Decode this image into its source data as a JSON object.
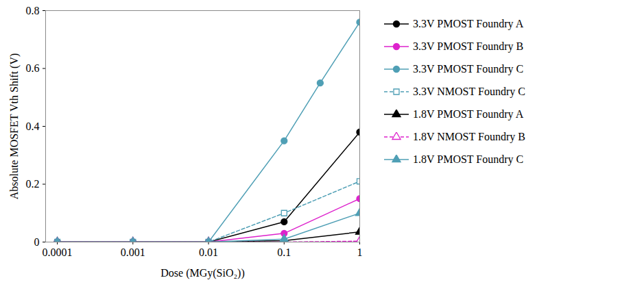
{
  "chart_data": {
    "type": "line",
    "x_label": "Dose (MGy(SiO₂))",
    "y_label": "Absolute MOSFET Vth Shift (V)",
    "log": "x",
    "xlim": [
      7e-05,
      1
    ],
    "xticks": [
      0.0001,
      0.001,
      0.01,
      0.1,
      1
    ],
    "ylim": [
      0,
      0.8
    ],
    "yticks": [
      0,
      0.2,
      0.4,
      0.6,
      0.8
    ],
    "grid": false,
    "legend": "right",
    "series": [
      {
        "name": "3.3V PMOST Foundry A",
        "color": "#000000",
        "marker": "circle",
        "line_style": "solid",
        "x": [
          0.0001,
          0.001,
          0.01,
          0.1,
          1
        ],
        "values": [
          0,
          0,
          0,
          0.07,
          0.38
        ]
      },
      {
        "name": "3.3V PMOST Foundry B",
        "color": "#dd22cc",
        "marker": "circle",
        "line_style": "solid",
        "x": [
          0.0001,
          0.001,
          0.01,
          0.1,
          1
        ],
        "values": [
          0,
          0,
          0,
          0.03,
          0.15
        ]
      },
      {
        "name": "3.3V PMOST Foundry C",
        "color": "#4f9fb5",
        "marker": "circle",
        "line_style": "solid",
        "x": [
          0.0001,
          0.001,
          0.01,
          0.1,
          0.3,
          1
        ],
        "values": [
          0,
          0,
          0,
          0.35,
          0.55,
          0.76
        ]
      },
      {
        "name": "3.3V NMOST Foundry C",
        "color": "#4f9fb5",
        "marker": "square-open",
        "line_style": "dashed",
        "x": [
          0.0001,
          0.001,
          0.01,
          0.1,
          1
        ],
        "values": [
          0,
          0,
          0,
          0.1,
          0.21
        ]
      },
      {
        "name": "1.8V PMOST Foundry A",
        "color": "#000000",
        "marker": "triangle",
        "line_style": "solid",
        "x": [
          0.0001,
          0.001,
          0.01,
          0.1,
          1
        ],
        "values": [
          0,
          0,
          0,
          0.005,
          0.035
        ]
      },
      {
        "name": "1.8V NMOST Foundry B",
        "color": "#dd22cc",
        "marker": "triangle-open",
        "line_style": "dashed",
        "x": [
          0.0001,
          0.001,
          0.01,
          0.1,
          1
        ],
        "values": [
          0,
          0,
          0,
          0,
          0.003
        ]
      },
      {
        "name": "1.8V PMOST Foundry C",
        "color": "#4f9fb5",
        "marker": "triangle",
        "line_style": "solid",
        "x": [
          0.0001,
          0.001,
          0.01,
          0.1,
          1
        ],
        "values": [
          0,
          0,
          0,
          0.01,
          0.1
        ]
      }
    ]
  }
}
